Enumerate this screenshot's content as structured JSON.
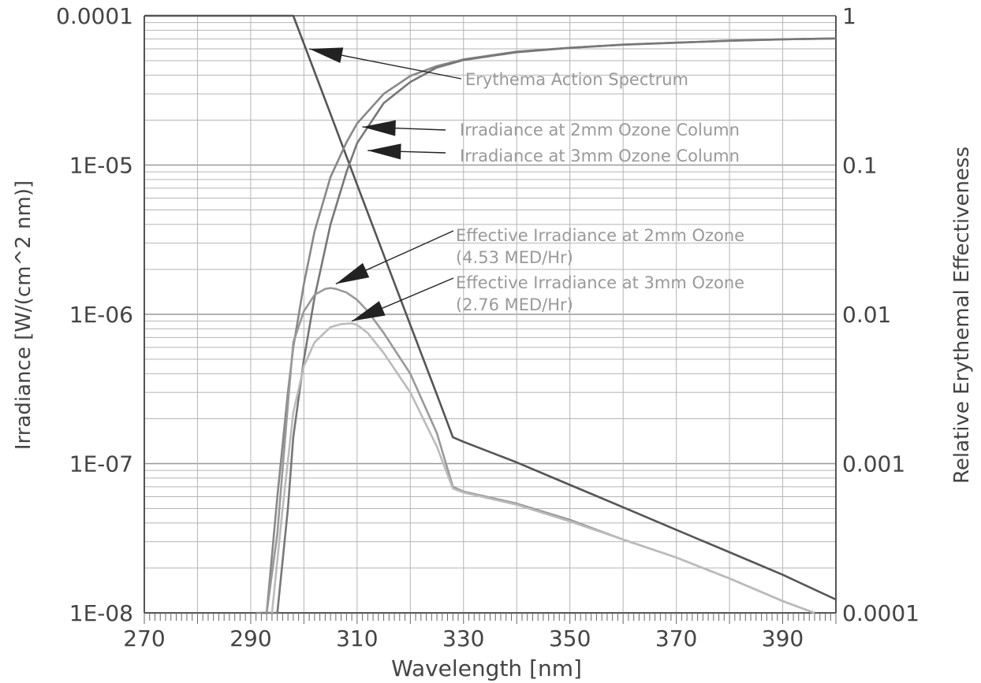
{
  "chart_data": {
    "type": "line",
    "xlabel": "Wavelength [nm]",
    "ylabel_left": "Irradiance [W/(cm^2 nm)]",
    "ylabel_right": "Relative Erythemal Effectiveness",
    "xlim": [
      270,
      400
    ],
    "ylim_left": [
      1e-08,
      0.0001
    ],
    "ylim_right": [
      0.0001,
      1
    ],
    "yscale": "log",
    "grid": true,
    "x_ticks": [
      270,
      290,
      310,
      330,
      350,
      370,
      390
    ],
    "x_tick_labels": [
      "270",
      "290",
      "310",
      "330",
      "350",
      "370",
      "390"
    ],
    "y_ticks_left": [
      1e-08,
      1e-07,
      1e-06,
      1e-05,
      0.0001
    ],
    "y_tick_labels_left": [
      "1E-08",
      "1E-07",
      "1E-06",
      "1E-05",
      "0.0001"
    ],
    "y_ticks_right": [
      0.0001,
      0.001,
      0.01,
      0.1,
      1
    ],
    "y_tick_labels_right": [
      "0.0001",
      "0.001",
      "0.01",
      "0.1",
      "1"
    ],
    "series": [
      {
        "name": "Erythema Action Spectrum",
        "axis": "right",
        "color": "#555555",
        "x": [
          270,
          298,
          300,
          305,
          310,
          315,
          320,
          325,
          328,
          330,
          340,
          350,
          360,
          370,
          380,
          390,
          400
        ],
        "y": [
          1,
          1,
          0.65,
          0.22,
          0.074,
          0.025,
          0.0085,
          0.0029,
          0.0015,
          0.0014,
          0.00102,
          0.00072,
          0.00051,
          0.00036,
          0.000255,
          0.00018,
          0.000123
        ]
      },
      {
        "name": "Irradiance at 2mm Ozone Column",
        "axis": "left",
        "color": "#888888",
        "x": [
          291,
          293,
          295,
          297,
          298,
          300,
          302,
          305,
          308,
          310,
          315,
          320,
          325,
          330,
          340,
          350,
          360,
          370,
          380,
          390,
          400
        ],
        "y": [
          1e-08,
          1e-08,
          6e-08,
          3e-07,
          6e-07,
          1.6e-06,
          3.6e-06,
          8.3e-06,
          1.42e-05,
          1.9e-05,
          3e-05,
          3.95e-05,
          4.6e-05,
          5.1e-05,
          5.75e-05,
          6.1e-05,
          6.4e-05,
          6.6e-05,
          6.8e-05,
          6.95e-05,
          7.05e-05
        ]
      },
      {
        "name": "Irradiance at 3mm Ozone Column",
        "axis": "left",
        "color": "#777777",
        "x": [
          292,
          295,
          297,
          298,
          300,
          302,
          305,
          308,
          310,
          315,
          320,
          325,
          330,
          340,
          350,
          360,
          370,
          380,
          390,
          400
        ],
        "y": [
          1e-08,
          1e-08,
          5e-08,
          1.5e-07,
          5e-07,
          1.3e-06,
          4e-06,
          9e-06,
          1.4e-05,
          2.6e-05,
          3.6e-05,
          4.5e-05,
          5.05e-05,
          5.7e-05,
          6.1e-05,
          6.4e-05,
          6.6e-05,
          6.8e-05,
          6.95e-05,
          7.05e-05
        ]
      },
      {
        "name": "Effective Irradiance at 2mm Ozone",
        "axis": "left",
        "color": "#999999",
        "x": [
          293,
          295,
          297,
          298,
          300,
          302,
          304,
          305,
          306,
          308,
          310,
          312,
          315,
          320,
          325,
          328,
          330,
          340,
          350,
          360,
          370,
          380,
          390,
          396
        ],
        "y": [
          1e-08,
          3.4e-08,
          2.5e-07,
          6.5e-07,
          1.05e-06,
          1.35e-06,
          1.48e-06,
          1.5e-06,
          1.48e-06,
          1.4e-06,
          1.25e-06,
          1.05e-06,
          7.5e-07,
          4e-07,
          1.6e-07,
          7e-08,
          6.5e-08,
          5.4e-08,
          4.2e-08,
          3.1e-08,
          2.35e-08,
          1.7e-08,
          1.2e-08,
          1e-08
        ]
      },
      {
        "name": "Effective Irradiance at 3mm Ozone",
        "axis": "left",
        "color": "#bbbbbb",
        "x": [
          294,
          296,
          298,
          300,
          302,
          305,
          307,
          309,
          310,
          312,
          315,
          320,
          325,
          328,
          330,
          340,
          350,
          360,
          370,
          380,
          390,
          396
        ],
        "y": [
          1e-08,
          5e-08,
          2.2e-07,
          4.5e-07,
          6.5e-07,
          8.2e-07,
          8.6e-07,
          8.7e-07,
          8.5e-07,
          7.5e-07,
          5.5e-07,
          3e-07,
          1.3e-07,
          6.8e-08,
          6.4e-08,
          5.3e-08,
          4.1e-08,
          3.1e-08,
          2.35e-08,
          1.7e-08,
          1.2e-08,
          1e-08
        ]
      }
    ],
    "annotations": [
      {
        "text": "Erythema Action Spectrum",
        "arrow_to_x": 301,
        "arrow_to_y_right": 0.6
      },
      {
        "text": "Irradiance at 2mm Ozone Column",
        "arrow_to_x": 311,
        "arrow_to_y_left": 1.8e-05
      },
      {
        "text": "Irradiance at 3mm Ozone Column",
        "arrow_to_x": 312,
        "arrow_to_y_left": 1.25e-05
      },
      {
        "text": "Effective Irradiance at 2mm Ozone",
        "text2": "(4.53 MED/Hr)",
        "arrow_to_x": 306,
        "arrow_to_y_left": 1.6e-06
      },
      {
        "text": "Effective Irradiance at 3mm Ozone",
        "text2": "(2.76 MED/Hr)",
        "arrow_to_x": 309,
        "arrow_to_y_left": 9e-07
      }
    ]
  }
}
